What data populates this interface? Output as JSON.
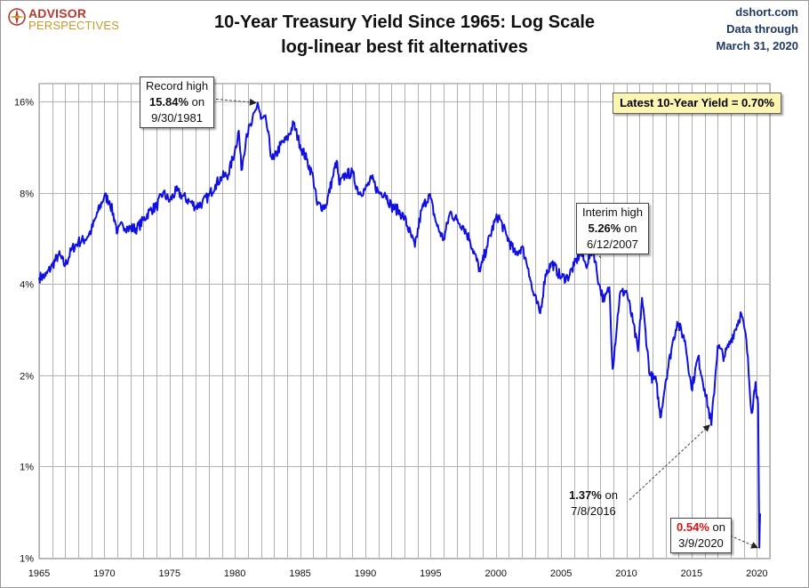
{
  "header": {
    "logo_top": "ADVISOR",
    "logo_bottom": "PERSPECTIVES",
    "title": "10-Year Treasury Yield Since 1965: Log Scale",
    "subtitle": "log-linear best fit alternatives",
    "source": "dshort.com",
    "data_through_label": "Data through",
    "data_through_date": "March 31, 2020"
  },
  "annotations": {
    "latest": "Latest 10-Year Yield = 0.70%",
    "record_line1": "Record high",
    "record_value": "15.84%",
    "record_on": " on",
    "record_date": "9/30/1981",
    "interim_line1": "Interim high",
    "interim_value": "5.26%",
    "interim_on": " on",
    "interim_date": "6/12/2007",
    "low2016_value": "1.37%",
    "low2016_on": " on",
    "low2016_date": "7/8/2016",
    "low2020_value": "0.54%",
    "low2020_on": " on",
    "low2020_date": "3/9/2020"
  },
  "colors": {
    "series": "#1010e0",
    "grid": "#b0b0b0",
    "highlight": "#e01010",
    "label_bg": "#fdf6b3"
  },
  "chart_data": {
    "type": "line",
    "title": "10-Year Treasury Yield Since 1965: Log Scale",
    "subtitle": "log-linear best fit alternatives",
    "y_scale": "log2",
    "ylim": [
      0.5,
      16
    ],
    "y_ticks": [
      0.5,
      1,
      2,
      4,
      8,
      16
    ],
    "y_tick_labels": [
      "1%",
      "1%",
      "2%",
      "4%",
      "8%",
      "16%"
    ],
    "xlim": [
      1965,
      2021
    ],
    "x_ticks": [
      1965,
      1970,
      1975,
      1980,
      1985,
      1990,
      1995,
      2000,
      2005,
      2010,
      2015,
      2020
    ],
    "x_tick_labels": [
      "1965",
      "1970",
      "1975",
      "1980",
      "1985",
      "1990",
      "1995",
      "2000",
      "2005",
      "2010",
      "2015",
      "2020"
    ],
    "grid": true,
    "series": [
      {
        "values_pct": [
          [
            1965.0,
            4.2
          ],
          [
            1965.5,
            4.25
          ],
          [
            1966.0,
            4.6
          ],
          [
            1966.5,
            5.0
          ],
          [
            1967.0,
            4.6
          ],
          [
            1967.5,
            5.2
          ],
          [
            1968.0,
            5.5
          ],
          [
            1968.5,
            5.6
          ],
          [
            1969.0,
            6.0
          ],
          [
            1969.5,
            6.9
          ],
          [
            1970.0,
            7.8
          ],
          [
            1970.4,
            7.5
          ],
          [
            1970.8,
            6.5
          ],
          [
            1971.0,
            5.9
          ],
          [
            1971.4,
            6.3
          ],
          [
            1971.8,
            6.1
          ],
          [
            1972.5,
            6.1
          ],
          [
            1973.0,
            6.5
          ],
          [
            1973.5,
            7.0
          ],
          [
            1974.0,
            7.2
          ],
          [
            1974.5,
            8.0
          ],
          [
            1975.0,
            7.5
          ],
          [
            1975.5,
            8.1
          ],
          [
            1976.0,
            7.8
          ],
          [
            1976.5,
            7.5
          ],
          [
            1977.0,
            7.2
          ],
          [
            1977.5,
            7.4
          ],
          [
            1978.0,
            7.8
          ],
          [
            1978.5,
            8.5
          ],
          [
            1979.0,
            9.0
          ],
          [
            1979.5,
            9.2
          ],
          [
            1980.0,
            11.0
          ],
          [
            1980.3,
            12.8
          ],
          [
            1980.5,
            9.5
          ],
          [
            1980.9,
            12.5
          ],
          [
            1981.3,
            13.5
          ],
          [
            1981.75,
            15.84
          ],
          [
            1982.0,
            14.0
          ],
          [
            1982.4,
            13.8
          ],
          [
            1982.8,
            10.5
          ],
          [
            1983.0,
            10.3
          ],
          [
            1983.5,
            11.5
          ],
          [
            1984.0,
            12.0
          ],
          [
            1984.5,
            13.5
          ],
          [
            1985.0,
            11.5
          ],
          [
            1985.5,
            10.3
          ],
          [
            1986.0,
            9.0
          ],
          [
            1986.3,
            7.3
          ],
          [
            1986.8,
            7.2
          ],
          [
            1987.0,
            7.3
          ],
          [
            1987.5,
            9.0
          ],
          [
            1987.8,
            10.2
          ],
          [
            1988.0,
            8.5
          ],
          [
            1988.5,
            9.2
          ],
          [
            1989.0,
            9.3
          ],
          [
            1989.5,
            8.0
          ],
          [
            1990.0,
            8.2
          ],
          [
            1990.5,
            8.9
          ],
          [
            1991.0,
            8.0
          ],
          [
            1991.5,
            8.0
          ],
          [
            1992.0,
            7.2
          ],
          [
            1992.5,
            7.0
          ],
          [
            1993.0,
            6.6
          ],
          [
            1993.8,
            5.3
          ],
          [
            1994.3,
            7.0
          ],
          [
            1994.9,
            7.9
          ],
          [
            1995.5,
            6.2
          ],
          [
            1996.0,
            5.6
          ],
          [
            1996.5,
            6.9
          ],
          [
            1997.0,
            6.5
          ],
          [
            1997.5,
            6.2
          ],
          [
            1998.0,
            5.6
          ],
          [
            1998.8,
            4.4
          ],
          [
            1999.3,
            5.3
          ],
          [
            1999.9,
            6.4
          ],
          [
            2000.2,
            6.7
          ],
          [
            2000.8,
            5.8
          ],
          [
            2001.5,
            5.0
          ],
          [
            2002.0,
            5.3
          ],
          [
            2002.5,
            4.5
          ],
          [
            2002.8,
            3.8
          ],
          [
            2003.4,
            3.2
          ],
          [
            2003.8,
            4.3
          ],
          [
            2004.3,
            4.7
          ],
          [
            2005.0,
            4.2
          ],
          [
            2005.5,
            4.2
          ],
          [
            2006.0,
            4.6
          ],
          [
            2006.5,
            5.1
          ],
          [
            2006.9,
            4.6
          ],
          [
            2007.45,
            5.26
          ],
          [
            2007.9,
            4.0
          ],
          [
            2008.3,
            3.5
          ],
          [
            2008.7,
            3.9
          ],
          [
            2008.95,
            2.1
          ],
          [
            2009.5,
            3.7
          ],
          [
            2010.0,
            3.8
          ],
          [
            2010.5,
            3.0
          ],
          [
            2010.9,
            2.4
          ],
          [
            2011.2,
            3.6
          ],
          [
            2011.8,
            2.0
          ],
          [
            2012.3,
            1.9
          ],
          [
            2012.6,
            1.45
          ],
          [
            2013.0,
            1.9
          ],
          [
            2013.5,
            2.5
          ],
          [
            2013.9,
            3.0
          ],
          [
            2014.5,
            2.6
          ],
          [
            2015.0,
            1.8
          ],
          [
            2015.5,
            2.3
          ],
          [
            2016.0,
            1.8
          ],
          [
            2016.52,
            1.37
          ],
          [
            2017.0,
            2.5
          ],
          [
            2017.5,
            2.3
          ],
          [
            2018.0,
            2.6
          ],
          [
            2018.8,
            3.2
          ],
          [
            2019.2,
            2.6
          ],
          [
            2019.6,
            1.5
          ],
          [
            2019.9,
            1.9
          ],
          [
            2020.1,
            1.6
          ],
          [
            2020.19,
            0.54
          ],
          [
            2020.25,
            0.7
          ]
        ]
      }
    ],
    "annotations": [
      {
        "label": "Record high 15.84% on 9/30/1981",
        "x": 1981.75,
        "y": 15.84
      },
      {
        "label": "Interim high 5.26% on 6/12/2007",
        "x": 2007.45,
        "y": 5.26
      },
      {
        "label": "1.37% on 7/8/2016",
        "x": 2016.52,
        "y": 1.37
      },
      {
        "label": "0.54% on 3/9/2020",
        "x": 2020.19,
        "y": 0.54
      }
    ],
    "latest_label": "Latest 10-Year Yield = 0.70%"
  }
}
